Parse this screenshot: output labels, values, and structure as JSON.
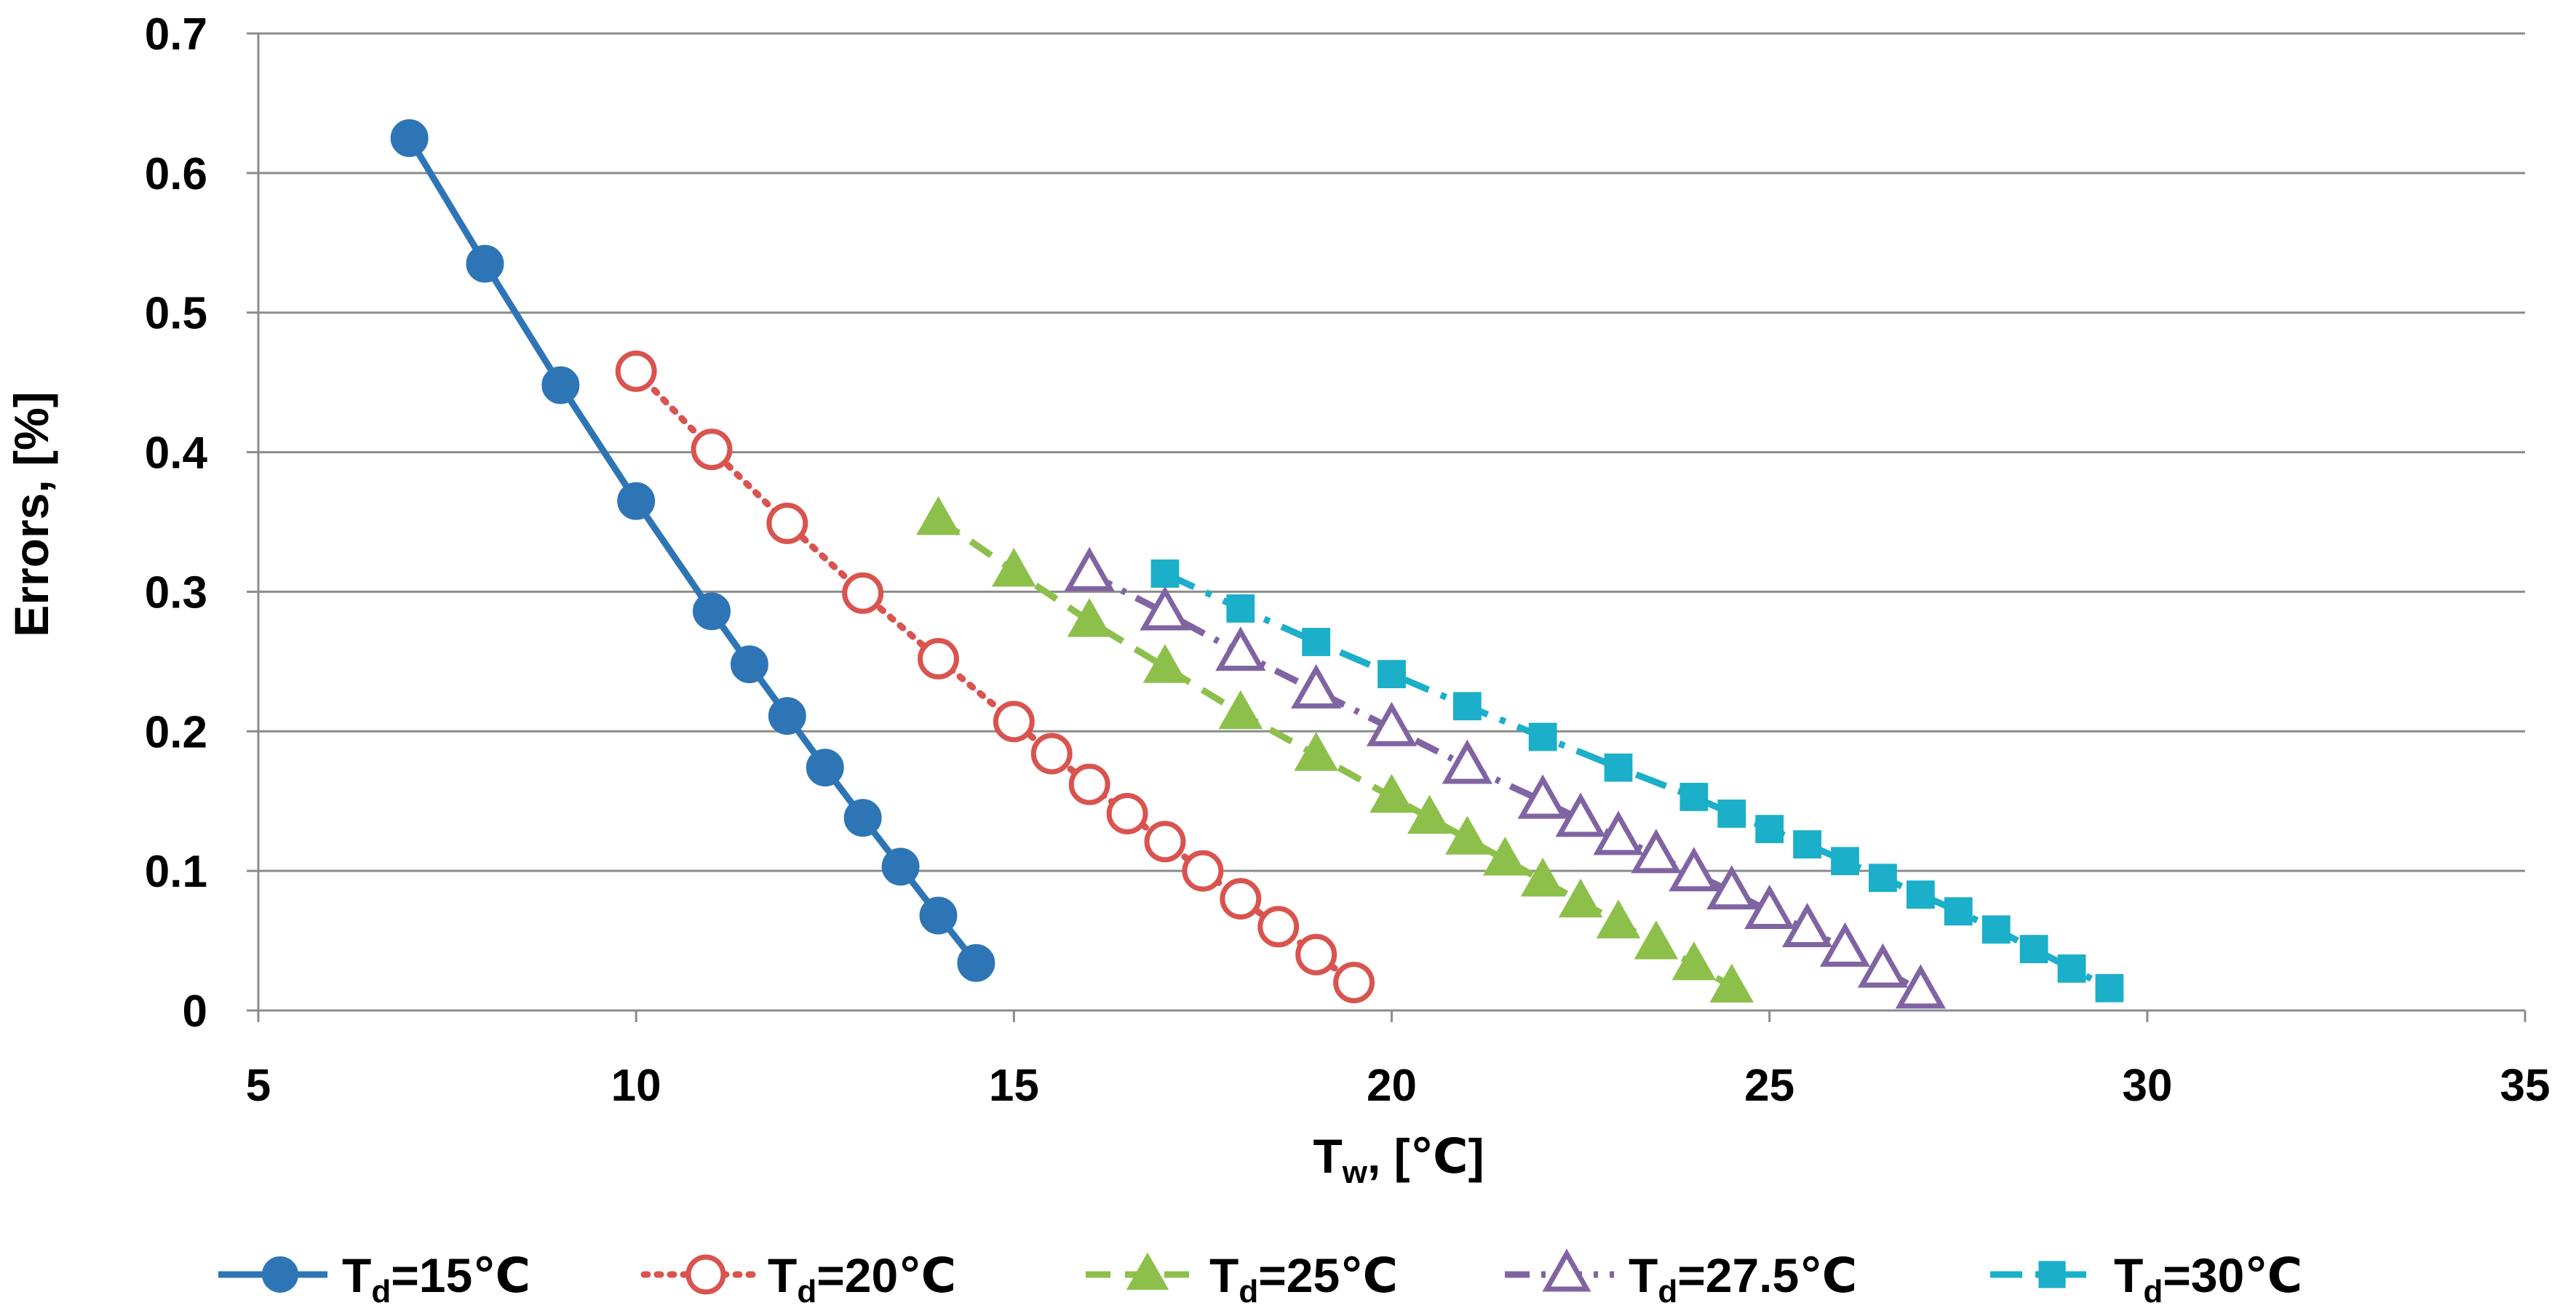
{
  "chart_data": {
    "type": "line",
    "title": "",
    "xlabel": {
      "main": "T",
      "sub": "w",
      "rest": ", [℃]"
    },
    "ylabel": "Errors, [%]",
    "xlim": [
      5,
      35
    ],
    "ylim": [
      0,
      0.7
    ],
    "xticks": [
      5,
      10,
      15,
      20,
      25,
      30,
      35
    ],
    "yticks": [
      0,
      0.1,
      0.2,
      0.3,
      0.4,
      0.5,
      0.6,
      0.7
    ],
    "ytick_labels": [
      "0",
      "0.1",
      "0.2",
      "0.3",
      "0.4",
      "0.5",
      "0.6",
      "0.7"
    ],
    "grid": "horizontal",
    "legend_position": "bottom",
    "series": [
      {
        "name": "Td=15℃",
        "label_main": "T",
        "label_sub": "d",
        "label_rest": "=15℃",
        "color": "#2E75B6",
        "marker": "circle",
        "filled": true,
        "line": "solid",
        "x": [
          7,
          8,
          9,
          10,
          11,
          11.5,
          12,
          12.5,
          13,
          13.5,
          14,
          14.5
        ],
        "y": [
          0.625,
          0.535,
          0.448,
          0.365,
          0.286,
          0.248,
          0.211,
          0.174,
          0.138,
          0.103,
          0.068,
          0.034
        ]
      },
      {
        "name": "Td=20℃",
        "label_main": "T",
        "label_sub": "d",
        "label_rest": "=20℃",
        "color": "#D9534F",
        "marker": "circle",
        "filled": false,
        "line": "dotted",
        "x": [
          10,
          11,
          12,
          13,
          14,
          15,
          15.5,
          16,
          16.5,
          17,
          17.5,
          18,
          18.5,
          19,
          19.5
        ],
        "y": [
          0.458,
          0.402,
          0.349,
          0.299,
          0.252,
          0.207,
          0.184,
          0.162,
          0.141,
          0.121,
          0.1,
          0.08,
          0.06,
          0.04,
          0.02
        ]
      },
      {
        "name": "Td=25℃",
        "label_main": "T",
        "label_sub": "d",
        "label_rest": "=25℃",
        "color": "#8DC04B",
        "marker": "triangle",
        "filled": true,
        "line": "dashed",
        "x": [
          14,
          15,
          16,
          17,
          18,
          19,
          20,
          20.5,
          21,
          21.5,
          22,
          22.5,
          23,
          23.5,
          24,
          24.5
        ],
        "y": [
          0.352,
          0.315,
          0.279,
          0.246,
          0.213,
          0.183,
          0.153,
          0.138,
          0.123,
          0.108,
          0.093,
          0.078,
          0.063,
          0.048,
          0.033,
          0.017
        ]
      },
      {
        "name": "Td=27.5℃",
        "label_main": "T",
        "label_sub": "d",
        "label_rest": "=27.5℃",
        "color": "#8064A2",
        "marker": "triangle",
        "filled": false,
        "line": "dashdot",
        "x": [
          16,
          17,
          18,
          19,
          20,
          21,
          22,
          22.5,
          23,
          23.5,
          24,
          24.5,
          25,
          25.5,
          26,
          26.5,
          27
        ],
        "y": [
          0.313,
          0.285,
          0.256,
          0.229,
          0.202,
          0.175,
          0.15,
          0.137,
          0.124,
          0.111,
          0.098,
          0.085,
          0.071,
          0.058,
          0.044,
          0.029,
          0.014
        ]
      },
      {
        "name": "Td=30℃",
        "label_main": "T",
        "label_sub": "d",
        "label_rest": "=30℃",
        "color": "#1BAFC9",
        "marker": "square",
        "filled": true,
        "line": "longdashdot",
        "x": [
          17,
          18,
          19,
          20,
          21,
          22,
          23,
          24,
          24.5,
          25,
          25.5,
          26,
          26.5,
          27,
          27.5,
          28,
          28.5,
          29,
          29.5
        ],
        "y": [
          0.313,
          0.288,
          0.264,
          0.241,
          0.218,
          0.196,
          0.174,
          0.153,
          0.141,
          0.13,
          0.119,
          0.107,
          0.095,
          0.083,
          0.071,
          0.058,
          0.044,
          0.03,
          0.016
        ]
      }
    ]
  }
}
